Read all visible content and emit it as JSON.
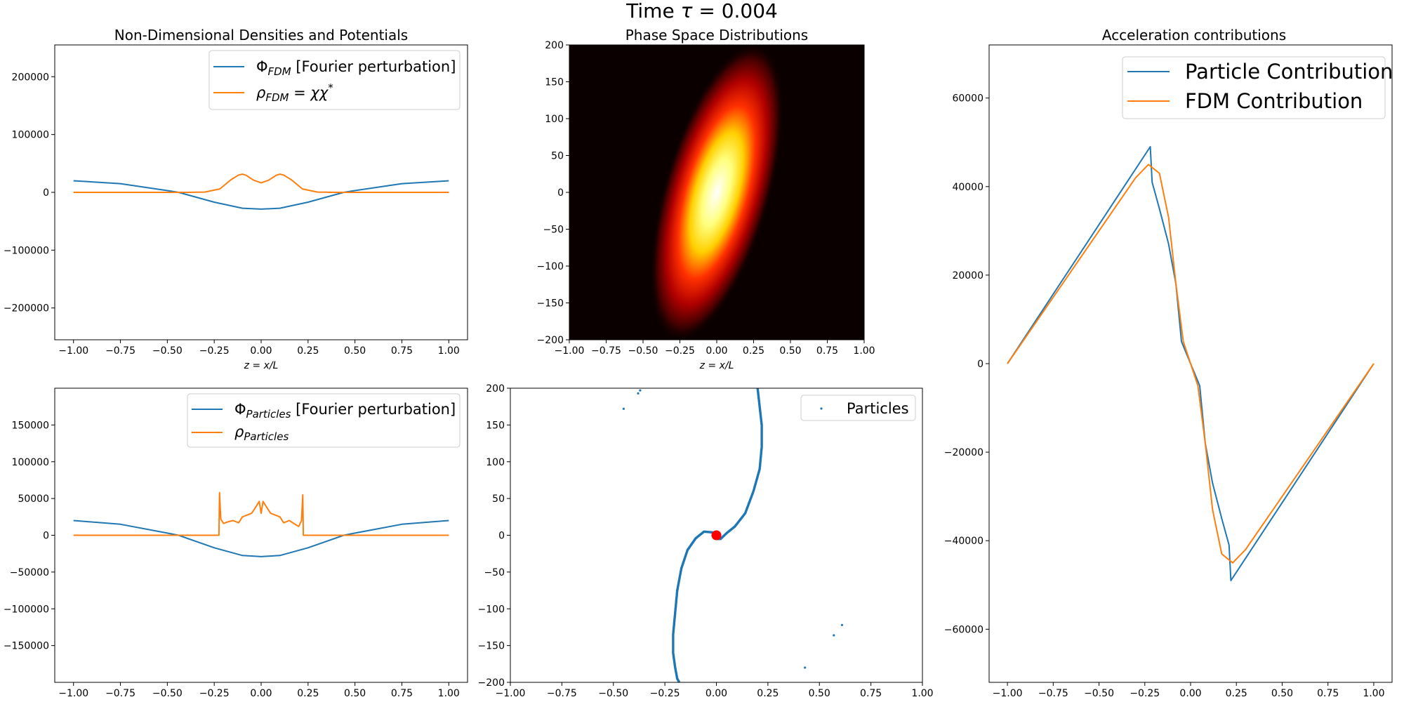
{
  "figure": {
    "suptitle_prefix": "Time ",
    "suptitle_symbol": "τ",
    "suptitle_value": " = 0.004"
  },
  "chart_data": [
    {
      "id": "fdm",
      "type": "line",
      "title": "Non-Dimensional Densities and Potentials",
      "xlabel": "z = x/L",
      "ylabel": "",
      "xlim": [
        -1.1,
        1.1
      ],
      "ylim": [
        -255000,
        255000
      ],
      "xticks": [
        -1.0,
        -0.75,
        -0.5,
        -0.25,
        0.0,
        0.25,
        0.5,
        0.75,
        1.0
      ],
      "yticks": [
        -200000,
        -100000,
        0,
        100000,
        200000
      ],
      "legend_position": "top-right",
      "series": [
        {
          "key": "phi",
          "color": "#1f77b4",
          "x": [
            -1.0,
            -0.75,
            -0.5,
            -0.44,
            -0.25,
            -0.1,
            0.0,
            0.1,
            0.25,
            0.44,
            0.5,
            0.75,
            1.0
          ],
          "y": [
            20000,
            15000,
            3000,
            0,
            -17000,
            -27500,
            -29000,
            -27500,
            -17000,
            0,
            3000,
            15000,
            20000
          ]
        },
        {
          "key": "rho",
          "color": "#ff7f0e",
          "x": [
            -1.0,
            -0.4,
            -0.3,
            -0.22,
            -0.16,
            -0.12,
            -0.1,
            -0.08,
            -0.04,
            0.0,
            0.04,
            0.08,
            0.1,
            0.12,
            0.16,
            0.22,
            0.3,
            0.4,
            1.0
          ],
          "y": [
            0,
            0,
            500,
            6000,
            22000,
            30000,
            31500,
            29500,
            21000,
            16500,
            21000,
            29500,
            31500,
            30000,
            22000,
            6000,
            500,
            0,
            0
          ]
        }
      ],
      "legend": [
        {
          "sym": "Φ",
          "sub": "FDM",
          "rest": " [Fourier perturbation]"
        },
        {
          "sym": "ρ",
          "sub": "FDM",
          "rest": " = χχ",
          "sup": "*"
        }
      ]
    },
    {
      "id": "phase",
      "type": "heatmap",
      "title": "Phase Space Distributions",
      "xlabel": "z = x/L",
      "xlim": [
        -1.0,
        1.0
      ],
      "ylim": [
        -200,
        200
      ],
      "xticks": [
        -1.0,
        -0.75,
        -0.5,
        -0.25,
        0.0,
        0.25,
        0.5,
        0.75,
        1.0
      ],
      "yticks": [
        -200,
        -150,
        -100,
        -50,
        0,
        50,
        100,
        150,
        200
      ],
      "colormap": "hot",
      "peak": {
        "x": 0.0,
        "y": 0.0
      }
    },
    {
      "id": "accel",
      "type": "line",
      "title": "Acceleration contributions",
      "xlim": [
        -1.1,
        1.1
      ],
      "ylim": [
        -72000,
        72000
      ],
      "xticks": [
        -1.0,
        -0.75,
        -0.5,
        -0.25,
        0.0,
        0.25,
        0.5,
        0.75,
        1.0
      ],
      "yticks": [
        -60000,
        -40000,
        -20000,
        0,
        20000,
        40000,
        60000
      ],
      "legend_position": "top-right",
      "series": [
        {
          "name": "Particle Contribution",
          "color": "#1f77b4",
          "x": [
            -1.0,
            -0.22,
            -0.21,
            -0.17,
            -0.12,
            -0.08,
            -0.05,
            0.0,
            0.05,
            0.08,
            0.12,
            0.17,
            0.21,
            0.22,
            1.0
          ],
          "y": [
            0,
            49000,
            41000,
            35000,
            27000,
            18000,
            5000,
            0,
            -5000,
            -18000,
            -27000,
            -35000,
            -41000,
            -49000,
            0
          ]
        },
        {
          "name": "FDM Contribution",
          "color": "#ff7f0e",
          "x": [
            -1.0,
            -0.3,
            -0.23,
            -0.17,
            -0.12,
            -0.08,
            -0.04,
            0.0,
            0.04,
            0.08,
            0.12,
            0.17,
            0.23,
            0.3,
            1.0
          ],
          "y": [
            0,
            42000,
            45000,
            43000,
            33000,
            18000,
            5000,
            0,
            -5000,
            -18000,
            -33000,
            -43000,
            -45000,
            -42000,
            0
          ]
        }
      ]
    },
    {
      "id": "particles",
      "type": "line",
      "xlim": [
        -1.1,
        1.1
      ],
      "ylim": [
        -200000,
        200000
      ],
      "xticks": [
        -1.0,
        -0.75,
        -0.5,
        -0.25,
        0.0,
        0.25,
        0.5,
        0.75,
        1.0
      ],
      "yticks": [
        -150000,
        -100000,
        -50000,
        0,
        50000,
        100000,
        150000
      ],
      "legend_position": "top-right",
      "series": [
        {
          "key": "phi",
          "color": "#1f77b4",
          "x": [
            -1.0,
            -0.75,
            -0.5,
            -0.44,
            -0.25,
            -0.1,
            0.0,
            0.1,
            0.25,
            0.44,
            0.5,
            0.75,
            1.0
          ],
          "y": [
            20000,
            15000,
            3000,
            0,
            -17000,
            -27500,
            -29000,
            -27500,
            -17000,
            0,
            3000,
            15000,
            20000
          ]
        },
        {
          "key": "rho",
          "color": "#ff7f0e",
          "x": [
            -1.0,
            -0.225,
            -0.222,
            -0.215,
            -0.2,
            -0.18,
            -0.15,
            -0.12,
            -0.1,
            -0.07,
            -0.05,
            -0.03,
            -0.01,
            0.0,
            0.01,
            0.03,
            0.05,
            0.07,
            0.1,
            0.12,
            0.15,
            0.18,
            0.2,
            0.215,
            0.222,
            0.225,
            1.0
          ],
          "y": [
            0,
            0,
            58000,
            22000,
            16000,
            18000,
            20000,
            17000,
            25000,
            28000,
            30000,
            38000,
            46000,
            30000,
            46000,
            38000,
            30000,
            28000,
            25000,
            17000,
            20000,
            15000,
            12000,
            20000,
            55000,
            0,
            0
          ]
        }
      ],
      "legend": [
        {
          "sym": "Φ",
          "sub": "Particles",
          "rest": " [Fourier perturbation]"
        },
        {
          "sym": "ρ",
          "sub": "Particles",
          "rest": ""
        }
      ]
    },
    {
      "id": "scatter",
      "type": "scatter",
      "xlim": [
        -1.0,
        1.0
      ],
      "ylim": [
        -200,
        200
      ],
      "xticks": [
        -1.0,
        -0.75,
        -0.5,
        -0.25,
        0.0,
        0.25,
        0.5,
        0.75,
        1.0
      ],
      "yticks": [
        -200,
        -150,
        -100,
        -50,
        0,
        50,
        100,
        150,
        200
      ],
      "legend_position": "top-right",
      "series": [
        {
          "name": "Particles",
          "color": "#1f77b4",
          "x": [
            0.2,
            0.21,
            0.22,
            0.22,
            0.21,
            0.18,
            0.14,
            0.09,
            0.05,
            0.02,
            0.0,
            -0.02,
            -0.06,
            -0.1,
            -0.14,
            -0.17,
            -0.19,
            -0.2,
            -0.21,
            -0.21,
            -0.2,
            -0.19,
            -0.18
          ],
          "y": [
            200,
            175,
            150,
            120,
            90,
            60,
            30,
            12,
            3,
            -5,
            -5,
            4,
            5,
            -4,
            -20,
            -45,
            -75,
            -105,
            -135,
            -160,
            -180,
            -195,
            -200
          ]
        }
      ],
      "stray_points": {
        "x": [
          -0.45,
          -0.38,
          -0.37,
          0.43,
          0.57,
          0.61
        ],
        "y": [
          172,
          193,
          197,
          -180,
          -136,
          -122
        ]
      },
      "marker": {
        "x": 0.0,
        "y": 0.0,
        "color": "#ff0000"
      }
    }
  ]
}
